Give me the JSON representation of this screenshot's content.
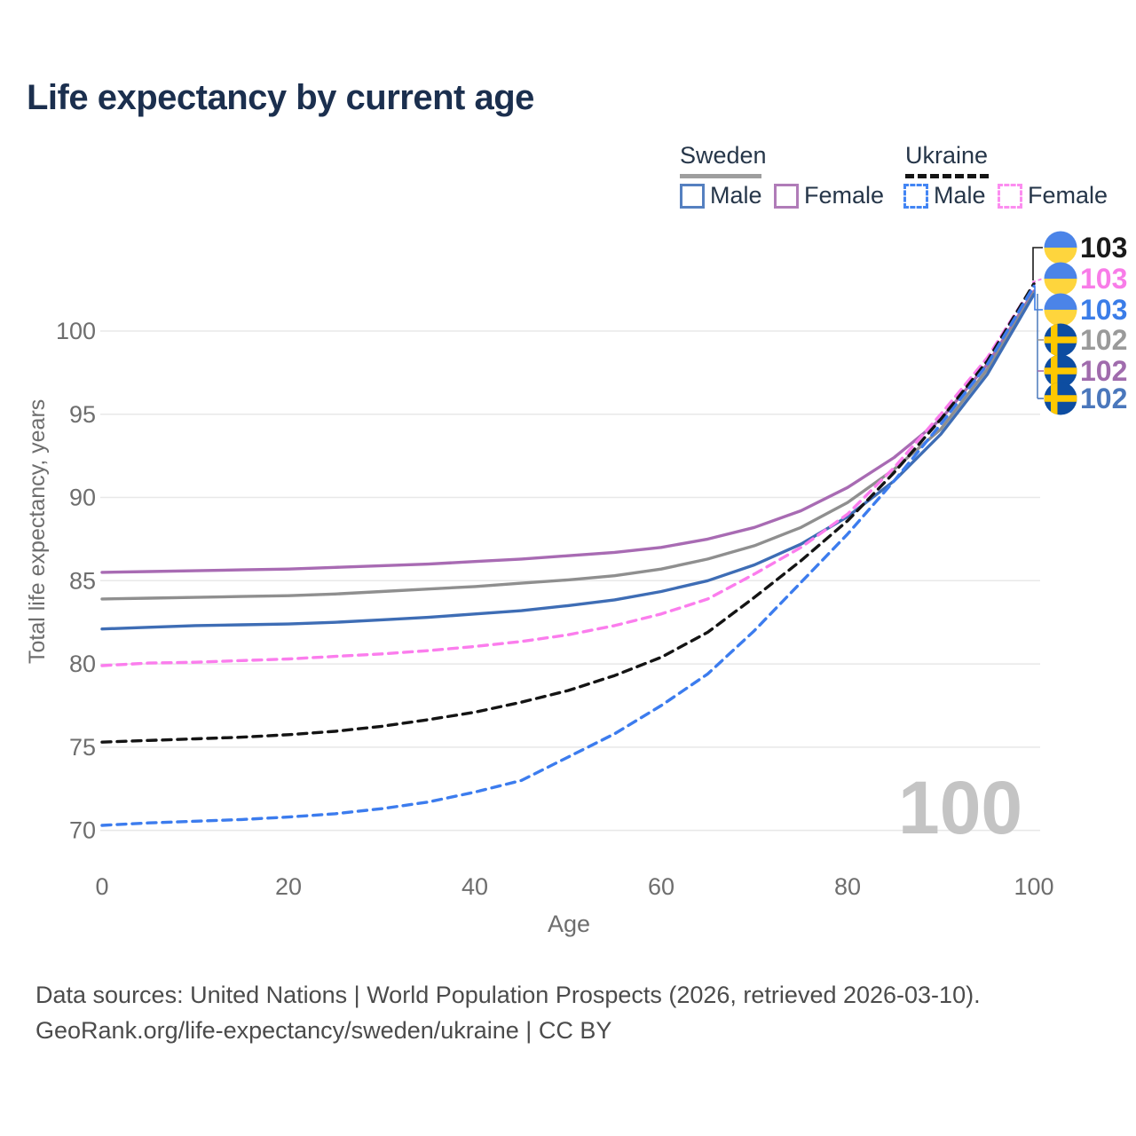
{
  "header": {
    "title": "Life expectancy by current age"
  },
  "legend": {
    "groups": [
      {
        "label": "Sweden",
        "line_style": "solid",
        "line_color": "#9e9e9e"
      },
      {
        "label": "Ukraine",
        "line_style": "dashed",
        "line_color": "#141414"
      }
    ],
    "items": [
      {
        "label": "Male",
        "country": "Sweden",
        "swatch_color": "#5580c0",
        "swatch_style": "solid"
      },
      {
        "label": "Female",
        "country": "Sweden",
        "swatch_color": "#b07cb8",
        "swatch_style": "solid"
      },
      {
        "label": "Male",
        "country": "Ukraine",
        "swatch_color": "#4285f4",
        "swatch_style": "dashed"
      },
      {
        "label": "Female",
        "country": "Ukraine",
        "swatch_color": "#fc8df0",
        "swatch_style": "dashed"
      }
    ]
  },
  "chart_data": {
    "type": "line",
    "title": "Life expectancy by current age",
    "xlabel": "Age",
    "ylabel": "Total life expectancy, years",
    "x": [
      0,
      5,
      10,
      15,
      20,
      25,
      30,
      35,
      40,
      45,
      50,
      55,
      60,
      65,
      70,
      75,
      80,
      85,
      90,
      95,
      100
    ],
    "xticks": [
      0,
      20,
      40,
      60,
      80,
      100
    ],
    "yticks": [
      70,
      75,
      80,
      85,
      90,
      95,
      100
    ],
    "xlim": [
      0,
      100
    ],
    "ylim": [
      68,
      104
    ],
    "grid": "horizontal",
    "legend_position": "top-right",
    "watermark_age": "100",
    "series": [
      {
        "name": "Sweden Female",
        "color": "#a86bb3",
        "dash": "solid",
        "values": [
          85.5,
          85.55,
          85.6,
          85.65,
          85.7,
          85.8,
          85.9,
          86.0,
          86.15,
          86.3,
          86.5,
          86.7,
          87.0,
          87.5,
          88.2,
          89.2,
          90.6,
          92.4,
          94.7,
          98.0,
          102.4
        ]
      },
      {
        "name": "Sweden",
        "color": "#8f8f8f",
        "dash": "solid",
        "values": [
          83.9,
          83.95,
          84.0,
          84.05,
          84.1,
          84.2,
          84.35,
          84.5,
          84.65,
          84.85,
          85.05,
          85.3,
          85.7,
          86.3,
          87.1,
          88.2,
          89.7,
          91.7,
          94.1,
          97.7,
          102.3
        ]
      },
      {
        "name": "Sweden Male",
        "color": "#3e6db5",
        "dash": "solid",
        "values": [
          82.1,
          82.2,
          82.3,
          82.35,
          82.4,
          82.5,
          82.65,
          82.8,
          83.0,
          83.2,
          83.5,
          83.85,
          84.35,
          85.0,
          85.95,
          87.2,
          88.85,
          91.0,
          93.8,
          97.4,
          102.2
        ]
      },
      {
        "name": "Ukraine Female",
        "color": "#fb7ded",
        "dash": "dashed",
        "values": [
          79.9,
          80.05,
          80.1,
          80.2,
          80.3,
          80.45,
          80.6,
          80.8,
          81.05,
          81.35,
          81.75,
          82.3,
          83.0,
          83.9,
          85.4,
          87.0,
          89.0,
          91.8,
          95.0,
          98.4,
          102.8
        ]
      },
      {
        "name": "Ukraine",
        "color": "#141414",
        "dash": "dashed",
        "values": [
          75.3,
          75.4,
          75.5,
          75.6,
          75.75,
          75.95,
          76.25,
          76.65,
          77.1,
          77.7,
          78.4,
          79.3,
          80.4,
          81.9,
          84.0,
          86.2,
          88.6,
          91.5,
          94.7,
          98.2,
          102.85
        ]
      },
      {
        "name": "Ukraine Male",
        "color": "#3c7cee",
        "dash": "dashed",
        "values": [
          70.3,
          70.45,
          70.55,
          70.65,
          70.8,
          71.0,
          71.3,
          71.7,
          72.3,
          73.0,
          74.4,
          75.8,
          77.5,
          79.4,
          82.0,
          84.9,
          87.8,
          91.0,
          94.4,
          98.0,
          102.7
        ]
      }
    ],
    "end_labels": [
      {
        "value": "103",
        "country": "Ukraine",
        "series": "Ukraine",
        "color": "#1a1a1a"
      },
      {
        "value": "103",
        "country": "Ukraine",
        "series": "Ukraine Female",
        "color": "#f87ce8"
      },
      {
        "value": "103",
        "country": "Ukraine",
        "series": "Ukraine Male",
        "color": "#3b7de8"
      },
      {
        "value": "102",
        "country": "Sweden",
        "series": "Sweden",
        "color": "#9a9a9a"
      },
      {
        "value": "102",
        "country": "Sweden",
        "series": "Sweden Female",
        "color": "#a06cad"
      },
      {
        "value": "102",
        "country": "Sweden",
        "series": "Sweden Male",
        "color": "#4a77bc"
      }
    ],
    "flag_colors": {
      "ukraine": {
        "top": "#4b84e8",
        "bottom": "#fed53d"
      },
      "sweden": {
        "bg": "#0d4da1",
        "cross": "#fec800"
      }
    },
    "grid_color": "#e8e8e8",
    "tick_color": "#6e6e6e"
  },
  "footer": {
    "line1": "Data sources: United Nations | World Population Prospects (2026, retrieved 2026-03-10).",
    "line2": "GeoRank.org/life-expectancy/sweden/ukraine | CC BY"
  }
}
